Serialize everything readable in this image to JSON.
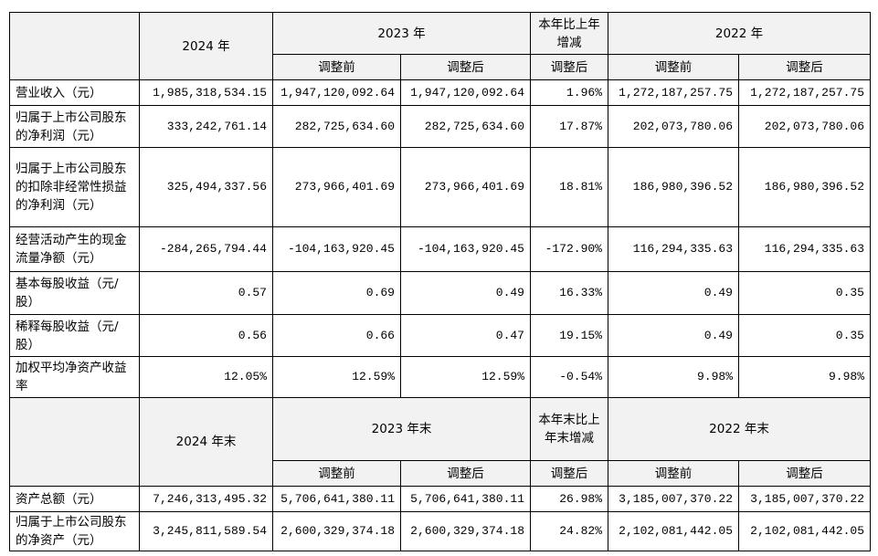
{
  "table1": {
    "year_a": "2024 年",
    "year_b": "2023 年",
    "change": "本年比上年增减",
    "year_c": "2022 年",
    "sub": [
      "调整前",
      "调整后",
      "调整后",
      "调整前",
      "调整后"
    ],
    "rows": [
      [
        "营业收入（元）",
        "1,985,318,534.15",
        "1,947,120,092.64",
        "1,947,120,092.64",
        "1.96%",
        "1,272,187,257.75",
        "1,272,187,257.75"
      ],
      [
        "归属于上市公司股东的净利润（元）",
        "333,242,761.14",
        "282,725,634.60",
        "282,725,634.60",
        "17.87%",
        "202,073,780.06",
        "202,073,780.06"
      ],
      [
        "归属于上市公司股东的扣除非经常性损益的净利润（元）",
        "325,494,337.56",
        "273,966,401.69",
        "273,966,401.69",
        "18.81%",
        "186,980,396.52",
        "186,980,396.52"
      ],
      [
        "经营活动产生的现金流量净额（元）",
        "-284,265,794.44",
        "-104,163,920.45",
        "-104,163,920.45",
        "-172.90%",
        "116,294,335.63",
        "116,294,335.63"
      ],
      [
        "基本每股收益（元/股）",
        "0.57",
        "0.69",
        "0.49",
        "16.33%",
        "0.49",
        "0.35"
      ],
      [
        "稀释每股收益（元/股）",
        "0.56",
        "0.66",
        "0.47",
        "19.15%",
        "0.49",
        "0.35"
      ],
      [
        "加权平均净资产收益率",
        "12.05%",
        "12.59%",
        "12.59%",
        "-0.54%",
        "9.98%",
        "9.98%"
      ]
    ]
  },
  "table2": {
    "year_a": "2024 年末",
    "year_b": "2023 年末",
    "change": "本年末比上年末增减",
    "year_c": "2022 年末",
    "sub": [
      "调整前",
      "调整后",
      "调整后",
      "调整前",
      "调整后"
    ],
    "rows": [
      [
        "资产总额（元）",
        "7,246,313,495.32",
        "5,706,641,380.11",
        "5,706,641,380.11",
        "26.98%",
        "3,185,007,370.22",
        "3,185,007,370.22"
      ],
      [
        "归属于上市公司股东的净资产（元）",
        "3,245,811,589.54",
        "2,600,329,374.18",
        "2,600,329,374.18",
        "24.82%",
        "2,102,081,442.05",
        "2,102,081,442.05"
      ]
    ]
  }
}
